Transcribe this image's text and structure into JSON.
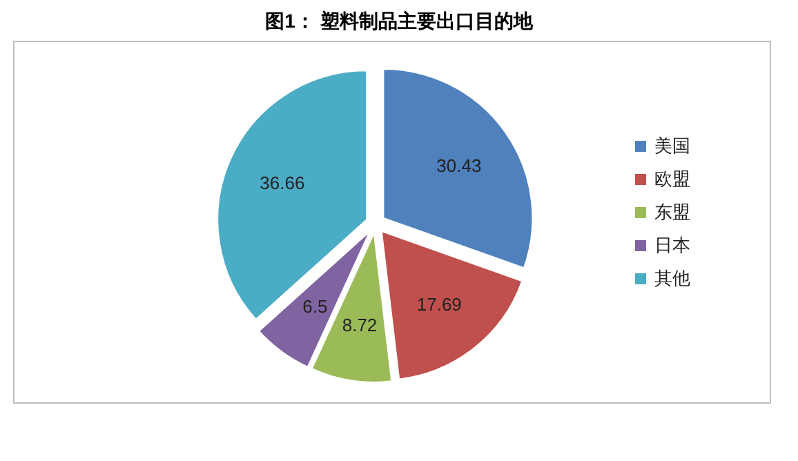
{
  "chart_data": {
    "type": "pie",
    "title": "图1： 塑料制品主要出口目的地",
    "categories": [
      "美国",
      "欧盟",
      "东盟",
      "日本",
      "其他"
    ],
    "values": [
      30.43,
      17.69,
      8.72,
      6.5,
      36.66
    ],
    "colors": [
      "#4f81bd",
      "#c0504d",
      "#9bbb59",
      "#8064a2",
      "#4bacc6"
    ],
    "data_labels": true,
    "legend": "right"
  }
}
